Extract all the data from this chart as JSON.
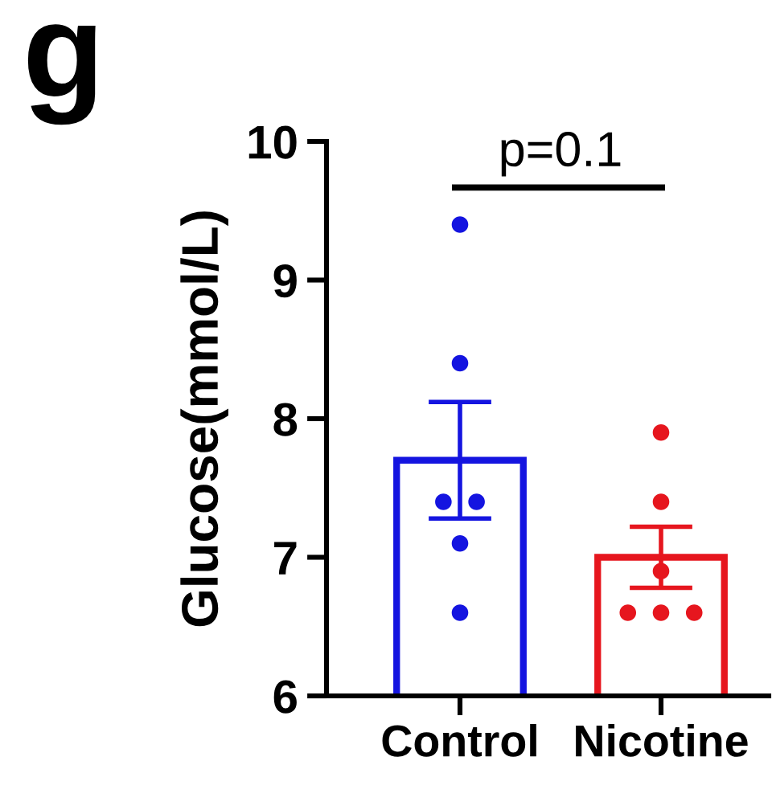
{
  "chart_data": {
    "type": "bar",
    "title": "g",
    "ylabel": "Glucose(mmol/L)",
    "categories": [
      "Control",
      "Nicotine"
    ],
    "series": [
      {
        "values": [
          7.7,
          7.0
        ],
        "errors": [
          0.42,
          0.22
        ],
        "colors": [
          "#1414e0",
          "#e6161e"
        ]
      },
      {
        "type": "scatter",
        "x": [
          "Control",
          "Control",
          "Control",
          "Control",
          "Control",
          "Control"
        ],
        "values": [
          9.4,
          8.4,
          7.4,
          7.4,
          7.1,
          6.6
        ],
        "color": "#1414e0"
      },
      {
        "type": "scatter",
        "x": [
          "Nicotine",
          "Nicotine",
          "Nicotine",
          "Nicotine",
          "Nicotine",
          "Nicotine"
        ],
        "values": [
          7.9,
          7.4,
          6.9,
          6.6,
          6.6,
          6.6
        ],
        "color": "#e6161e"
      }
    ],
    "ylim": [
      6,
      10
    ],
    "yticks": [
      6,
      7,
      8,
      9,
      10
    ],
    "marker": "circle",
    "annotations": [
      "p=0.1"
    ]
  }
}
